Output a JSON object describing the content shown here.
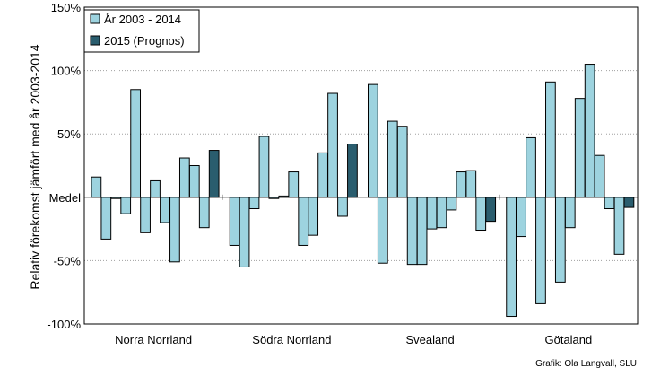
{
  "chart_data": {
    "type": "bar",
    "ylabel": "Relativ förekomst jämfört med år 2003-2014",
    "ylim": [
      -100,
      150
    ],
    "yticks": [
      {
        "value": 150,
        "label": "150%"
      },
      {
        "value": 100,
        "label": "100%"
      },
      {
        "value": 50,
        "label": "50%"
      },
      {
        "value": 0,
        "label": "Medel"
      },
      {
        "value": -50,
        "label": "-50%"
      },
      {
        "value": -100,
        "label": "-100%"
      }
    ],
    "grid": true,
    "legend": {
      "position": "top-left",
      "entries": [
        {
          "label": "År 2003 - 2014",
          "color": "#9dd3df"
        },
        {
          "label": "2015 (Prognos)",
          "color": "#2a5d6e"
        }
      ]
    },
    "groups": [
      {
        "name": "Norra Norrland",
        "history": [
          16,
          -33,
          -1,
          -13,
          85,
          -28,
          13,
          -20,
          -51,
          31,
          25,
          -24
        ],
        "forecast": 37
      },
      {
        "name": "Södra Norrland",
        "history": [
          -38,
          -55,
          -9,
          48,
          -1,
          1,
          20,
          -38,
          -30,
          35,
          82,
          -15
        ],
        "forecast": 42
      },
      {
        "name": "Svealand",
        "history": [
          89,
          -52,
          60,
          56,
          -53,
          -53,
          -25,
          -24,
          -10,
          20,
          21,
          -26
        ],
        "forecast": -19
      },
      {
        "name": "Götaland",
        "history": [
          -94,
          -31,
          47,
          -84,
          91,
          -67,
          -24,
          78,
          105,
          33,
          -9,
          -45
        ],
        "forecast": -8
      }
    ],
    "credit": "Grafik: Ola Langvall, SLU"
  },
  "colors": {
    "history": "#9dd3df",
    "forecast": "#2a5d6e",
    "grid": "#a0a0a0",
    "axis": "#000000"
  }
}
